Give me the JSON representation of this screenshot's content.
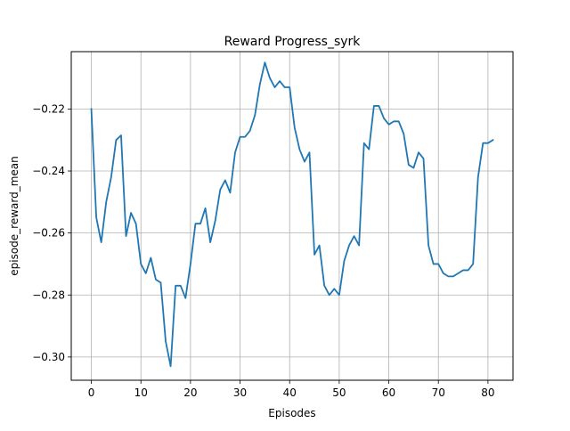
{
  "chart_data": {
    "type": "line",
    "title": "Reward Progress_syrk",
    "xlabel": "Episodes",
    "ylabel": "episode_reward_mean",
    "xlim": [
      -4.05,
      85.05
    ],
    "ylim": [
      -0.3075,
      -0.2015
    ],
    "xticks": [
      0,
      10,
      20,
      30,
      40,
      50,
      60,
      70,
      80
    ],
    "yticks": [
      -0.3,
      -0.28,
      -0.26,
      -0.24,
      -0.22
    ],
    "ytick_labels": [
      "−0.30",
      "−0.28",
      "−0.26",
      "−0.24",
      "−0.22"
    ],
    "grid": true,
    "line_color": "#1f77b4",
    "series": [
      {
        "x": [
          0,
          1,
          2,
          3,
          4,
          5,
          6,
          7,
          8,
          9,
          10,
          11,
          12,
          13,
          14,
          15,
          16,
          17,
          18,
          19,
          20,
          21,
          22,
          23,
          24,
          25,
          26,
          27,
          28,
          29,
          30,
          31,
          32,
          33,
          34,
          35,
          36,
          37,
          38,
          39,
          40,
          41,
          42,
          43,
          44,
          45,
          46,
          47,
          48,
          49,
          50,
          51,
          52,
          53,
          54,
          55,
          56,
          57,
          58,
          59,
          60,
          61,
          62,
          63,
          64,
          65,
          66,
          67,
          68,
          69,
          70,
          71,
          72,
          73,
          74,
          75,
          76,
          77,
          78,
          79,
          80,
          81
        ],
        "values": [
          -0.22,
          -0.255,
          -0.263,
          -0.25,
          -0.242,
          -0.23,
          -0.2285,
          -0.261,
          -0.2535,
          -0.257,
          -0.27,
          -0.273,
          -0.268,
          -0.275,
          -0.276,
          -0.295,
          -0.303,
          -0.277,
          -0.277,
          -0.281,
          -0.27,
          -0.257,
          -0.257,
          -0.252,
          -0.263,
          -0.256,
          -0.246,
          -0.243,
          -0.247,
          -0.234,
          -0.229,
          -0.229,
          -0.227,
          -0.222,
          -0.212,
          -0.205,
          -0.21,
          -0.213,
          -0.211,
          -0.213,
          -0.213,
          -0.226,
          -0.233,
          -0.237,
          -0.234,
          -0.267,
          -0.264,
          -0.277,
          -0.28,
          -0.278,
          -0.28,
          -0.269,
          -0.264,
          -0.261,
          -0.264,
          -0.231,
          -0.233,
          -0.219,
          -0.219,
          -0.223,
          -0.225,
          -0.224,
          -0.224,
          -0.228,
          -0.238,
          -0.239,
          -0.234,
          -0.236,
          -0.264,
          -0.27,
          -0.27,
          -0.273,
          -0.274,
          -0.274,
          -0.273,
          -0.272,
          -0.272,
          -0.27,
          -0.242,
          -0.231,
          -0.231,
          -0.23
        ]
      }
    ]
  }
}
